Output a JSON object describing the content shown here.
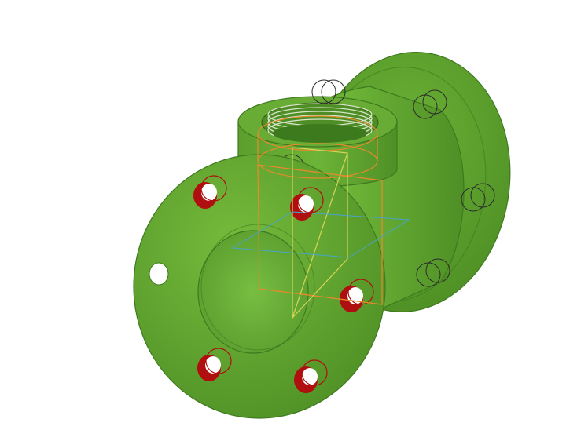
{
  "viewport": {
    "background": "#ffffff",
    "model": {
      "part": "flanged-tee-with-threaded-outlet",
      "body_color": "#5a9e2c",
      "highlight_color": "#6fb63a",
      "shadow_color": "#3f7a1e",
      "edge_color": "#2f5c14",
      "selected_hole_color": "#b00f0f",
      "hidden_edge_color": "#2b2b2b",
      "hole_count_front_flange": 6,
      "hole_count_back_flange": 6,
      "selected_hole_count": 5
    },
    "overlays": {
      "sketch_plane_color": "#e58a2b",
      "reference_plane_color": "#d7d55a",
      "axis_plane_color": "#4aa3c9"
    }
  }
}
